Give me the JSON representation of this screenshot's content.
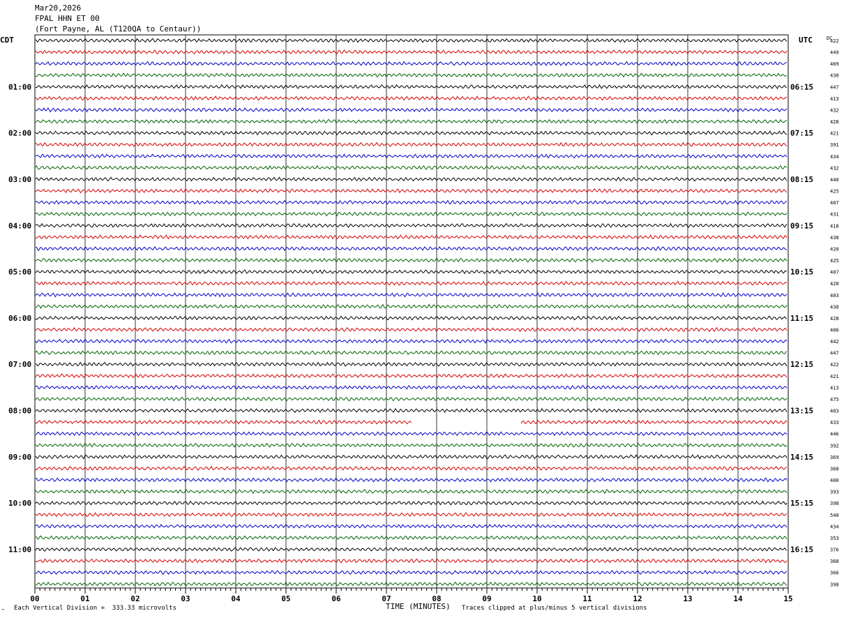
{
  "header": {
    "date": "Mar20,2026",
    "station": "FPAL HHN ET 00",
    "location": "(Fort Payne, AL (T120QA to Centaur))"
  },
  "labels": {
    "left_tz": "CDT",
    "right_tz": "UTC",
    "dc": "DC",
    "xlabel": "TIME (MINUTES)",
    "scale_note": "Each Vertical Division =  333.33 microvolts",
    "clip_note": "Traces clipped at plus/minus 5 vertical divisions"
  },
  "chart_data": {
    "type": "line",
    "title": "FPAL HHN ET 00",
    "xlabel": "TIME (MINUTES)",
    "xlim": [
      0,
      15
    ],
    "x_ticks": [
      "00",
      "01",
      "02",
      "03",
      "04",
      "05",
      "06",
      "07",
      "08",
      "09",
      "10",
      "11",
      "12",
      "13",
      "14",
      "15"
    ],
    "left_time_labels": [
      "01:00",
      "02:00",
      "03:00",
      "04:00",
      "05:00",
      "06:00",
      "07:00",
      "08:00",
      "09:00",
      "10:00",
      "11:00"
    ],
    "right_time_labels": [
      "06:15",
      "07:15",
      "08:15",
      "09:15",
      "10:15",
      "11:15",
      "12:15",
      "13:15",
      "14:15",
      "15:15",
      "16:15"
    ],
    "trace_colors": [
      "#000000",
      "#d40000",
      "#0000c8",
      "#006400"
    ],
    "dc_values": [
      422,
      449,
      469,
      430,
      447,
      413,
      432,
      428,
      421,
      391,
      434,
      432,
      440,
      425,
      407,
      431,
      418,
      438,
      420,
      425,
      407,
      420,
      403,
      430,
      428,
      406,
      442,
      447,
      422,
      421,
      413,
      475,
      403,
      433,
      446,
      392,
      369,
      368,
      400,
      393,
      398,
      540,
      434,
      353,
      376,
      368,
      366,
      398
    ],
    "gaps": [
      {
        "trace": 33,
        "from_minute": 7.5,
        "to_minute": 9.67
      }
    ],
    "grid": true
  }
}
